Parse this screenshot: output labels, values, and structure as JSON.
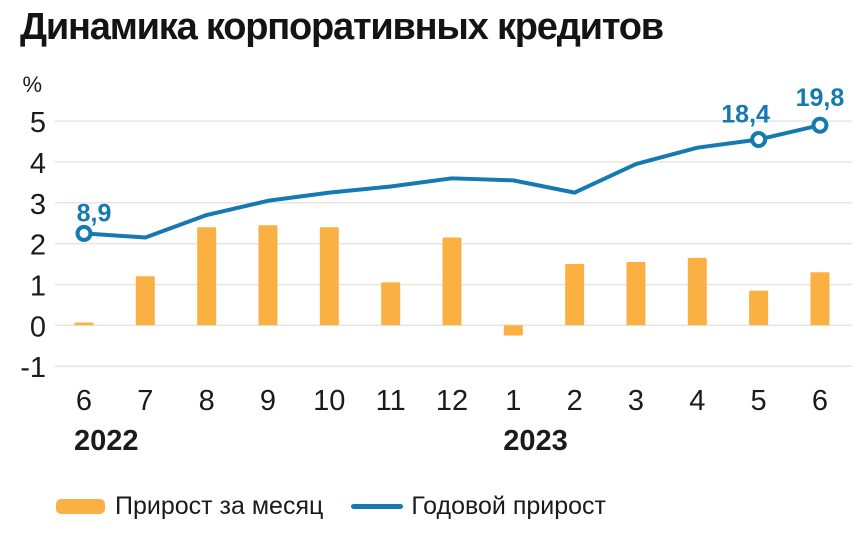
{
  "title": "Динамика корпоративных кредитов",
  "colors": {
    "bar": "#FBB044",
    "line": "#1579B2",
    "annotation": "#1579B2",
    "grid": "#E7E5E2",
    "text": "#1B1B1B",
    "marker_fill": "#FFFFFF"
  },
  "legend": [
    {
      "label": "Прирост за месяц",
      "type": "bar"
    },
    {
      "label": "Годовой прирост",
      "type": "line"
    }
  ],
  "chart_data": {
    "type": "bar+line combo",
    "title": "Динамика корпоративных кредитов",
    "axis_unit": "%",
    "categories": [
      "6",
      "7",
      "8",
      "9",
      "10",
      "11",
      "12",
      "1",
      "2",
      "3",
      "4",
      "5",
      "6"
    ],
    "year_labels": [
      {
        "text": "2022",
        "index": 0
      },
      {
        "text": "2023",
        "index": 7
      }
    ],
    "series": [
      {
        "name": "Прирост за месяц",
        "type": "bar",
        "values": [
          0.07,
          1.2,
          2.4,
          2.45,
          2.4,
          1.05,
          2.15,
          -0.25,
          1.5,
          1.55,
          1.65,
          0.85,
          1.3
        ]
      },
      {
        "name": "Годовой прирост",
        "type": "line",
        "values": [
          2.25,
          2.15,
          2.7,
          3.05,
          3.25,
          3.4,
          3.6,
          3.55,
          3.25,
          3.95,
          4.35,
          4.55,
          4.9
        ],
        "point_labels": [
          {
            "index": 0,
            "text": "8,9",
            "dx": 10,
            "dy": -12
          },
          {
            "index": 11,
            "text": "18,4",
            "dx": -13,
            "dy": -17
          },
          {
            "index": 12,
            "text": "19,8",
            "dx": 0,
            "dy": -19
          }
        ]
      }
    ],
    "ylim": [
      -1,
      5
    ],
    "yticks": [
      -1,
      0,
      1,
      2,
      3,
      4,
      5
    ],
    "grid": "horizontal",
    "legend_position": "bottom"
  }
}
